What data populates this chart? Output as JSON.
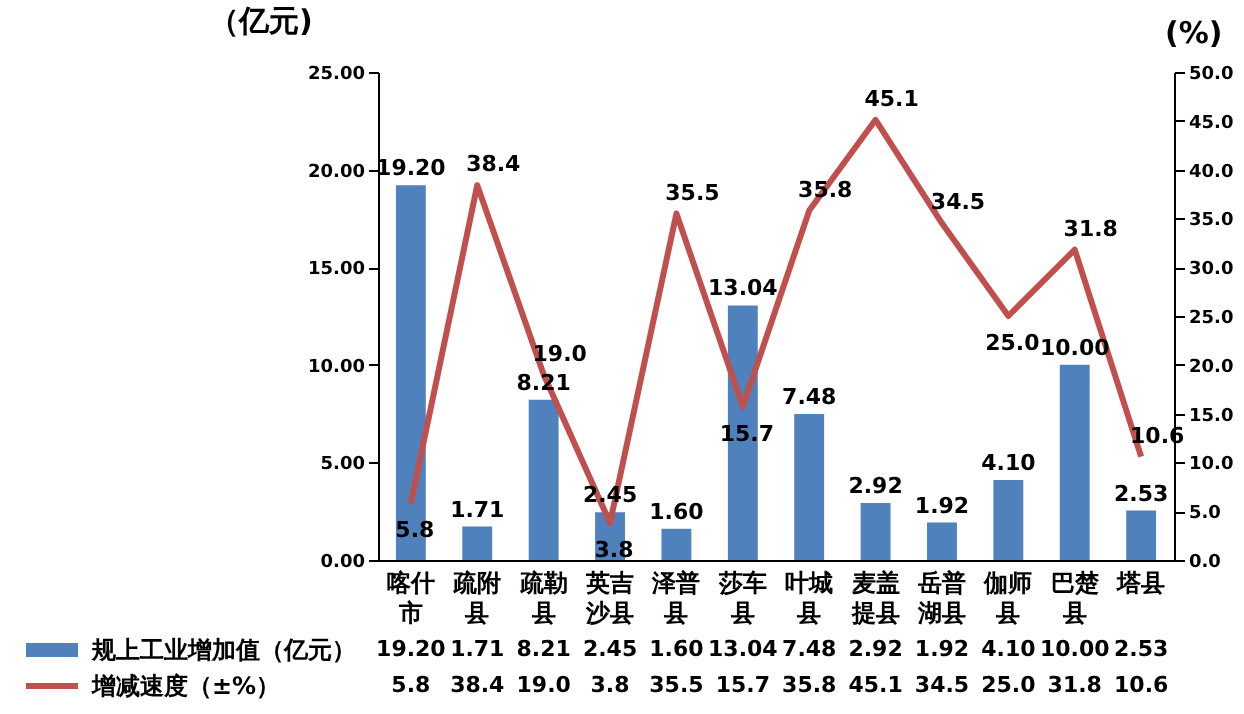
{
  "chart_data": {
    "type": "bar",
    "categories": [
      "喀什市",
      "疏附县",
      "疏勒县",
      "英吉沙县",
      "泽普县",
      "莎车县",
      "叶城县",
      "麦盖提县",
      "岳普湖县",
      "伽师县",
      "巴楚县",
      "塔县"
    ],
    "ylabel": "（亿元)",
    "y2label": "(%)",
    "ylim": [
      0,
      25
    ],
    "yticks": [
      {
        "value": 0,
        "label": "0.00"
      },
      {
        "value": 5,
        "label": "5.00"
      },
      {
        "value": 10,
        "label": "10.00"
      },
      {
        "value": 15,
        "label": "15.00"
      },
      {
        "value": 20,
        "label": "20.00"
      },
      {
        "value": 25,
        "label": "25.00"
      }
    ],
    "y2lim": [
      0,
      50
    ],
    "y2ticks": [
      {
        "value": 0,
        "label": "0.0"
      },
      {
        "value": 5,
        "label": "5.0"
      },
      {
        "value": 10,
        "label": "10.0"
      },
      {
        "value": 15,
        "label": "15.0"
      },
      {
        "value": 20,
        "label": "20.0"
      },
      {
        "value": 25,
        "label": "25.0"
      },
      {
        "value": 30,
        "label": "30.0"
      },
      {
        "value": 35,
        "label": "35.0"
      },
      {
        "value": 40,
        "label": "40.0"
      },
      {
        "value": 45,
        "label": "45.0"
      },
      {
        "value": 50,
        "label": "50.0"
      }
    ],
    "series": [
      {
        "name": "规上工业增加值（亿元）",
        "color": "#4f81bd",
        "values": [
          19.2,
          1.71,
          8.21,
          2.45,
          1.6,
          13.04,
          7.48,
          2.92,
          1.92,
          4.1,
          10.0,
          2.53
        ],
        "value_labels": [
          "19.20",
          "1.71",
          "8.21",
          "2.45",
          "1.60",
          "13.04",
          "7.48",
          "2.92",
          "1.92",
          "4.10",
          "10.00",
          "2.53"
        ]
      },
      {
        "name": "增减速度（±%）",
        "type": "line",
        "axis": "y2",
        "color": "#c0504d",
        "values": [
          5.8,
          38.4,
          19.0,
          3.8,
          35.5,
          15.7,
          35.8,
          45.1,
          34.5,
          25.0,
          31.8,
          10.6
        ],
        "value_labels": [
          "5.8",
          "38.4",
          "19.0",
          "3.8",
          "35.5",
          "15.7",
          "35.8",
          "45.1",
          "34.5",
          "25.0",
          "31.8",
          "10.6"
        ]
      }
    ],
    "legend": "bottom",
    "grid": false
  }
}
